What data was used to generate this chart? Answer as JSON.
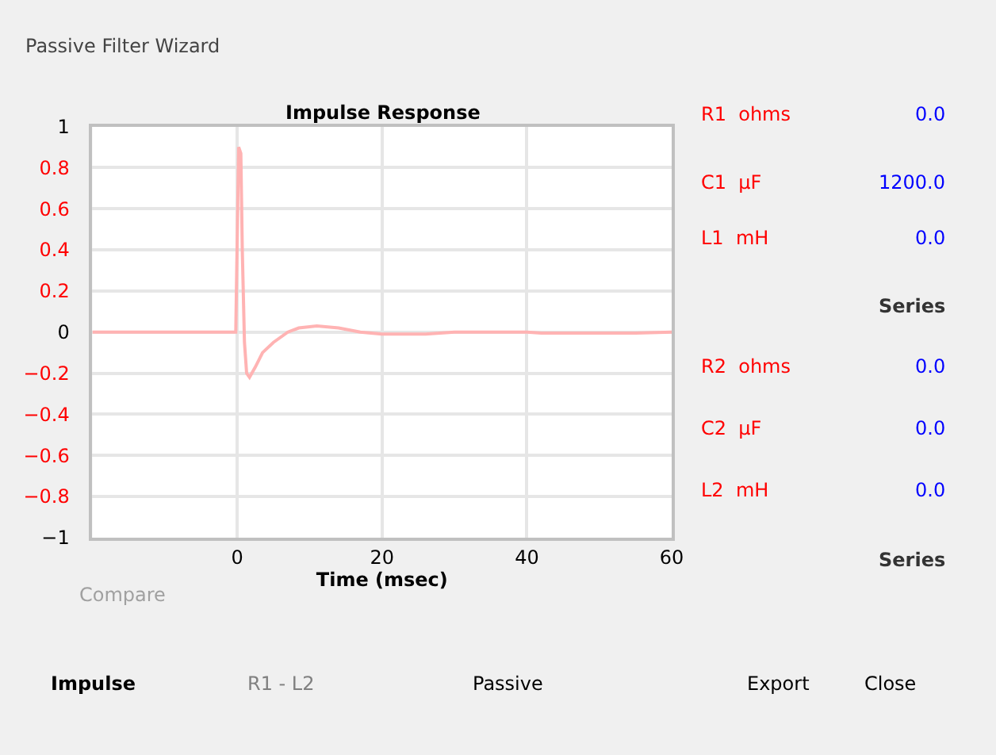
{
  "chart_data": {
    "type": "line",
    "title": "Impulse Response",
    "xlabel": "Time (msec)",
    "x": [
      -20,
      -0.2,
      0,
      0.2,
      0.5,
      0.7,
      1.0,
      1.3,
      1.7,
      2.5,
      3.5,
      5,
      7,
      8.5,
      11,
      14,
      17,
      20,
      26,
      30,
      40,
      42,
      55,
      60
    ],
    "series": [
      {
        "color": "#ffb3b3",
        "values": [
          0,
          0,
          0.45,
          0.9,
          0.87,
          0.4,
          -0.05,
          -0.2,
          -0.22,
          -0.17,
          -0.1,
          -0.05,
          0.0,
          0.02,
          0.03,
          0.02,
          0.0,
          -0.01,
          -0.01,
          0,
          0,
          -0.005,
          -0.005,
          0
        ]
      }
    ],
    "xlim": [
      -20,
      60
    ],
    "xticks": [
      0,
      20,
      40,
      60
    ],
    "ylim": [
      -1,
      1
    ],
    "yticks": [
      -1,
      -0.8,
      -0.6,
      -0.4,
      -0.2,
      0,
      0.2,
      0.4,
      0.6,
      0.8,
      1
    ],
    "grid": true,
    "marker": "none",
    "line_style": "solid",
    "annotations": [
      "Passive Filter Wizard",
      "R1  ohms",
      "0.0",
      "C1  µF",
      "1200.0",
      "L1  mH",
      "0.0",
      "Series",
      "R2  ohms",
      "0.0",
      "C2  µF",
      "0.0",
      "L2  mH",
      "0.0",
      "Series",
      "Compare",
      "Impulse",
      "R1 - L2",
      "Passive",
      "Export",
      "Close"
    ]
  }
}
